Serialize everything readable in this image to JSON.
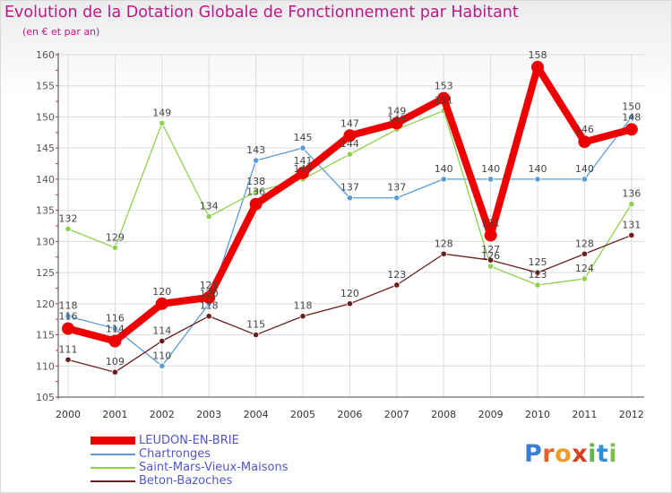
{
  "header": {
    "title": "Evolution de la Dotation Globale de Fonctionnement par Habitant",
    "subtitle": "(en € et par an)"
  },
  "logo": {
    "text": "Proxiti",
    "letters": [
      {
        "char": "P",
        "color": "#3a7fd6"
      },
      {
        "char": "r",
        "color": "#e0612a"
      },
      {
        "char": "o",
        "color": "#ef9c24"
      },
      {
        "char": "x",
        "color": "#d4401f"
      },
      {
        "char": "i",
        "color": "#5fb64a"
      },
      {
        "char": "t",
        "color": "#2f8fd8"
      },
      {
        "char": "i",
        "color": "#7cc04a"
      }
    ]
  },
  "chart_data": {
    "type": "line",
    "title": "Evolution de la Dotation Globale de Fonctionnement par Habitant",
    "subtitle": "(en € et par an)",
    "xlabel": "",
    "ylabel": "",
    "x": [
      2000,
      2001,
      2002,
      2003,
      2004,
      2005,
      2006,
      2007,
      2008,
      2009,
      2010,
      2011,
      2012
    ],
    "ylim": [
      105,
      160
    ],
    "yticks": [
      105,
      110,
      115,
      120,
      125,
      130,
      135,
      140,
      145,
      150,
      155,
      160
    ],
    "grid": true,
    "legend_position": "bottom-left",
    "series": [
      {
        "name": "Chartronges",
        "color": "#5b9bd5",
        "values": [
          118,
          116,
          110,
          120,
          143,
          145,
          137,
          137,
          140,
          140,
          140,
          140,
          150
        ]
      },
      {
        "name": "Saint-Mars-Vieux-Maisons",
        "color": "#8fd14f",
        "values": [
          132,
          129,
          149,
          134,
          138,
          140,
          144,
          148,
          151,
          126,
          123,
          124,
          136
        ]
      },
      {
        "name": "Beton-Bazoches",
        "color": "#6b1c1c",
        "values": [
          111,
          109,
          114,
          118,
          115,
          118,
          120,
          123,
          128,
          127,
          125,
          128,
          131
        ]
      },
      {
        "name": "LEUDON-EN-BRIE",
        "color": "#ee0000",
        "values": [
          116,
          114,
          120,
          121,
          136,
          141,
          147,
          149,
          153,
          131,
          158,
          146,
          148
        ]
      }
    ],
    "legend_order": [
      "LEUDON-EN-BRIE",
      "Chartronges",
      "Saint-Mars-Vieux-Maisons",
      "Beton-Bazoches"
    ]
  }
}
